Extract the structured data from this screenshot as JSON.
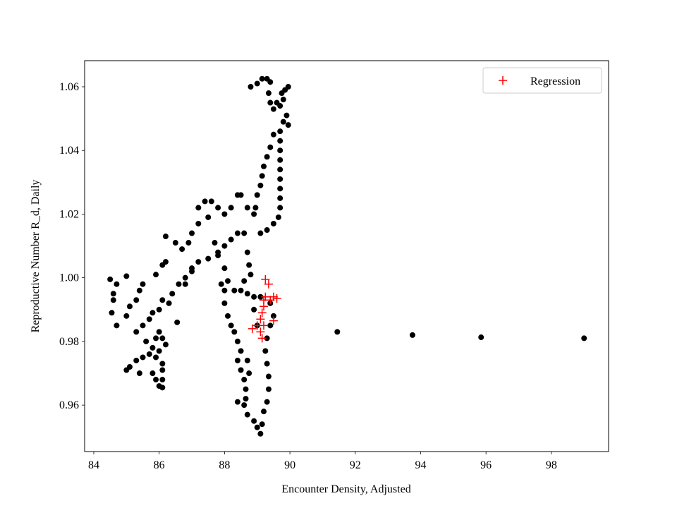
{
  "chart_data": {
    "type": "scatter",
    "xlabel": "Encounter Density, Adjusted",
    "ylabel": "Reproductive Number R_d, Daily",
    "xlim": [
      83.72,
      99.75
    ],
    "ylim": [
      0.9454,
      1.0682
    ],
    "xticks": [
      84,
      86,
      88,
      90,
      92,
      94,
      96,
      98
    ],
    "yticks": [
      0.96,
      0.98,
      {
        "value": 1.0,
        "label": "1.00"
      },
      1.02,
      1.04,
      1.06
    ],
    "grid": false,
    "legend": "upper right",
    "series": [
      {
        "color": "#000000",
        "marker": "circle",
        "x": [
          91.45,
          93.75,
          95.85,
          99.0,
          88.8,
          89.0,
          89.15,
          89.3,
          89.4,
          89.35,
          89.4,
          89.5,
          89.6,
          89.7,
          89.8,
          89.75,
          89.85,
          89.95,
          89.9,
          89.95,
          89.8,
          89.7,
          89.7,
          89.7,
          89.7,
          89.7,
          89.7,
          89.7,
          89.7,
          89.7,
          89.65,
          89.5,
          89.3,
          89.1,
          89.5,
          89.4,
          89.3,
          89.2,
          89.15,
          89.1,
          89.0,
          88.95,
          87.2,
          87.4,
          87.6,
          87.8,
          88.0,
          88.2,
          88.4,
          88.5,
          88.7,
          88.9,
          88.6,
          88.4,
          88.2,
          88.0,
          87.8,
          87.5,
          87.2,
          87.0,
          86.8,
          86.6,
          86.4,
          86.3,
          86.7,
          86.9,
          86.2,
          86.5,
          87.0,
          87.2,
          87.5,
          87.7,
          87.8,
          88.0,
          88.1,
          88.0,
          87.9,
          88.3,
          88.5,
          88.7,
          88.9,
          89.1,
          88.7,
          88.75,
          88.8,
          88.6,
          88.0,
          88.1,
          88.2,
          88.3,
          88.4,
          88.5,
          88.4,
          88.5,
          88.6,
          88.65,
          88.65,
          88.6,
          88.4,
          88.7,
          88.9,
          89.0,
          89.1,
          89.15,
          89.2,
          89.3,
          89.35,
          89.35,
          89.3,
          89.25,
          89.3,
          89.4,
          89.5,
          89.4,
          89.0,
          88.9,
          88.7,
          88.75,
          84.5,
          84.7,
          84.6,
          84.6,
          84.55,
          84.7,
          85.0,
          85.5,
          85.4,
          85.3,
          85.1,
          85.0,
          85.3,
          85.5,
          85.7,
          85.8,
          86.0,
          86.1,
          85.9,
          86.1,
          86.2,
          85.1,
          85.0,
          85.3,
          85.5,
          85.4,
          85.7,
          85.8,
          85.9,
          86.1,
          86.2,
          86.0,
          85.9,
          86.1,
          86.1,
          86.1,
          86.0,
          86.1,
          85.9,
          85.8,
          85.6,
          86.55,
          86.0,
          86.8,
          87.0
        ],
        "y": [
          0.983,
          0.982,
          0.9813,
          0.981,
          1.06,
          1.061,
          1.0625,
          1.0625,
          1.0615,
          1.058,
          1.055,
          1.053,
          1.055,
          1.054,
          1.056,
          1.058,
          1.059,
          1.06,
          1.051,
          1.048,
          1.049,
          1.046,
          1.043,
          1.04,
          1.037,
          1.034,
          1.031,
          1.028,
          1.025,
          1.022,
          1.019,
          1.017,
          1.015,
          1.014,
          1.045,
          1.041,
          1.038,
          1.035,
          1.032,
          1.029,
          1.026,
          1.022,
          1.022,
          1.024,
          1.024,
          1.022,
          1.02,
          1.022,
          1.026,
          1.026,
          1.022,
          1.02,
          1.014,
          1.014,
          1.012,
          1.01,
          1.008,
          1.006,
          1.005,
          1.003,
          1.0,
          0.998,
          0.995,
          0.992,
          1.009,
          1.011,
          1.013,
          1.011,
          1.014,
          1.017,
          1.019,
          1.011,
          1.007,
          1.003,
          0.999,
          0.996,
          0.998,
          0.996,
          0.996,
          0.995,
          0.994,
          0.994,
          1.008,
          1.004,
          1.001,
          0.999,
          0.992,
          0.988,
          0.985,
          0.983,
          0.98,
          0.977,
          0.974,
          0.971,
          0.968,
          0.965,
          0.962,
          0.96,
          0.961,
          0.957,
          0.955,
          0.953,
          0.951,
          0.954,
          0.958,
          0.961,
          0.965,
          0.969,
          0.973,
          0.977,
          0.981,
          0.985,
          0.988,
          0.992,
          0.985,
          0.99,
          0.974,
          0.97,
          0.9995,
          0.998,
          0.995,
          0.993,
          0.989,
          0.985,
          1.0005,
          0.998,
          0.996,
          0.993,
          0.991,
          0.988,
          0.983,
          0.985,
          0.987,
          0.989,
          0.99,
          0.993,
          1.001,
          1.004,
          1.005,
          0.972,
          0.971,
          0.974,
          0.975,
          0.97,
          0.976,
          0.978,
          0.981,
          0.981,
          0.979,
          0.977,
          0.975,
          0.973,
          0.971,
          0.968,
          0.966,
          0.9655,
          0.968,
          0.97,
          0.98,
          0.986,
          0.983,
          0.998,
          1.002
        ]
      },
      {
        "name": "Regression",
        "color": "#ff0000",
        "marker": "plus",
        "x": [
          89.25,
          89.35,
          89.25,
          89.5,
          89.6,
          89.2,
          89.15,
          89.2,
          89.1,
          89.1,
          89.15,
          88.85,
          89.5,
          89.0,
          89.4,
          89.2
        ],
        "y": [
          0.9995,
          0.998,
          0.994,
          0.994,
          0.9935,
          0.993,
          0.989,
          0.985,
          0.987,
          0.983,
          0.981,
          0.984,
          0.9865,
          0.985,
          0.993,
          0.991
        ]
      }
    ]
  }
}
